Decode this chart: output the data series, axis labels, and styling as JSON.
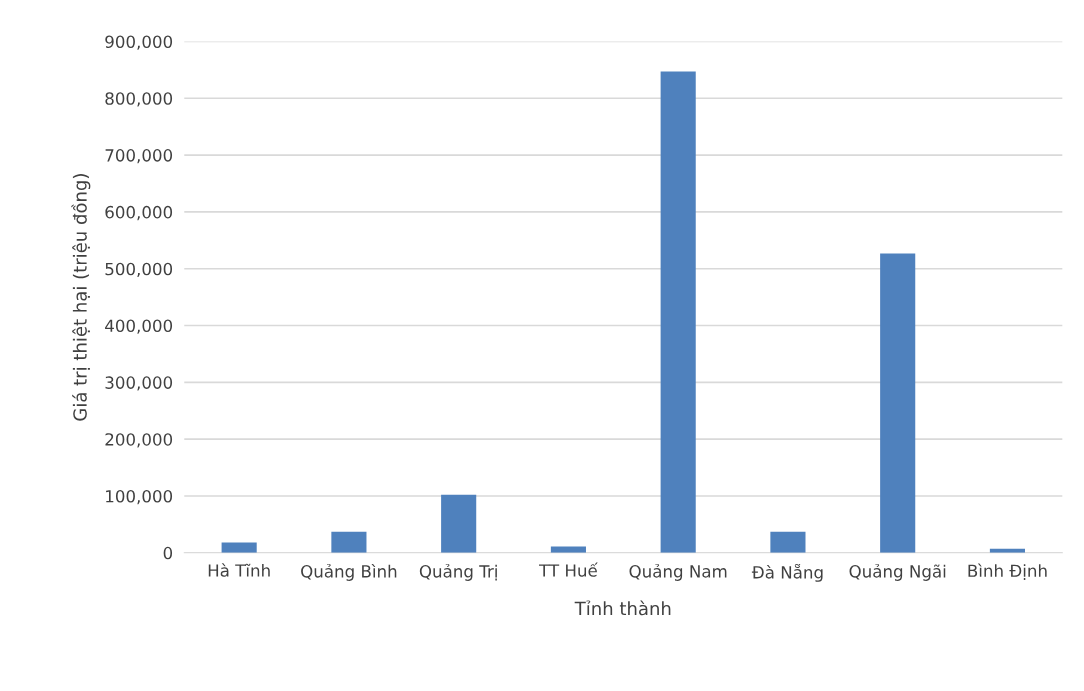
{
  "chart_data": {
    "type": "bar",
    "categories": [
      "Hà Tĩnh",
      "Quảng Bình",
      "Quảng Trị",
      "TT Huế",
      "Quảng Nam",
      "Đà Nẵng",
      "Quảng Ngãi",
      "Bình Định"
    ],
    "values": [
      18000,
      37000,
      102000,
      11000,
      847000,
      37000,
      527000,
      7000
    ],
    "color": "#4f81bd",
    "xlabel": "Tỉnh thành",
    "ylabel": "Giá trị thiệt hại (triệu đồng)",
    "ylim": [
      0,
      900000
    ],
    "yticks": [
      {
        "value": 0,
        "label": "0"
      },
      {
        "value": 100000,
        "label": "100,000"
      },
      {
        "value": 200000,
        "label": "200,000"
      },
      {
        "value": 300000,
        "label": "300,000"
      },
      {
        "value": 400000,
        "label": "400,000"
      },
      {
        "value": 500000,
        "label": "500,000"
      },
      {
        "value": 600000,
        "label": "600,000"
      },
      {
        "value": 700000,
        "label": "700,000"
      },
      {
        "value": 800000,
        "label": "800,000"
      },
      {
        "value": 900000,
        "label": "900,000"
      }
    ],
    "grid": "y"
  }
}
